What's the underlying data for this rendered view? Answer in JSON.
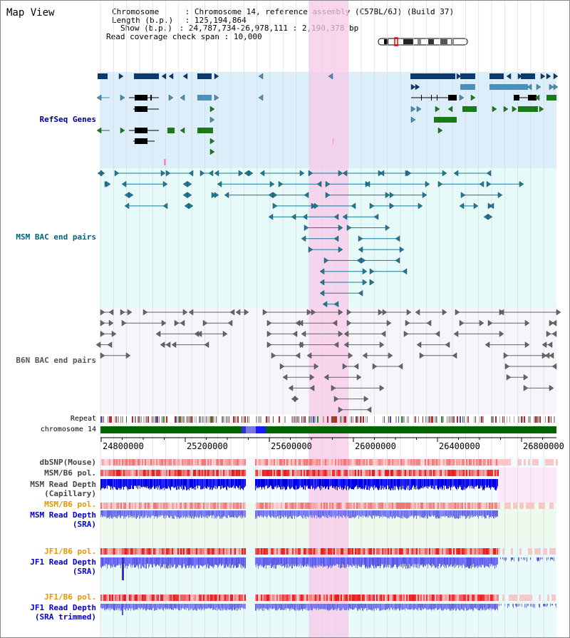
{
  "title": "Map View",
  "info": {
    "chromosome_label": "Chromosome",
    "chromosome_value": "Chromosome 14, reference assembly (C57BL/6J) (Build 37)",
    "length_label": "Length (b.p.)",
    "length_value": "125,194,864",
    "show_label": "Show (b.p.)",
    "show_value": "24,787,734-26,978,111 : 2,190,378 bp",
    "coverage_label": "Read coverage check span",
    "coverage_value": "10,000"
  },
  "colors": {
    "refseq_bg": "#dbeefa",
    "msm_bg": "#e6fafa",
    "b6n_bg": "#f4f4f8",
    "highlight": "#f8d8ef",
    "refseq_label": "#00008b",
    "msm_label": "#006680",
    "b6n_label": "#444444",
    "orange": "#e69500",
    "blue_label": "#0000cc"
  },
  "tracks": {
    "refseq": "RefSeq Genes",
    "msm_bac": "MSM BAC end pairs",
    "b6n_bac": "B6N BAC end pairs",
    "repeat": "Repeat",
    "chromosome": "chromosome 14",
    "dbsnp": "dbSNP(Mouse)",
    "msm_b6_pol": "MSM/B6 pol.",
    "msm_depth_cap": "MSM Read Depth\n(Capillary)",
    "msm_b6_pol2": "MSM/B6 pol.",
    "msm_depth_sra": "MSM Read Depth\n(SRA)",
    "jf1_b6_pol": "JF1/B6 pol.",
    "jf1_depth_sra": "JF1 Read Depth\n(SRA)",
    "jf1_b6_pol2": "JF1/B6 pol.",
    "jf1_depth_trim": "JF1 Read Depth\n(SRA trimmed)"
  },
  "axis": {
    "ticks": [
      "24800000",
      "25200000",
      "25600000",
      "26000000",
      "26400000",
      "26800000"
    ]
  }
}
